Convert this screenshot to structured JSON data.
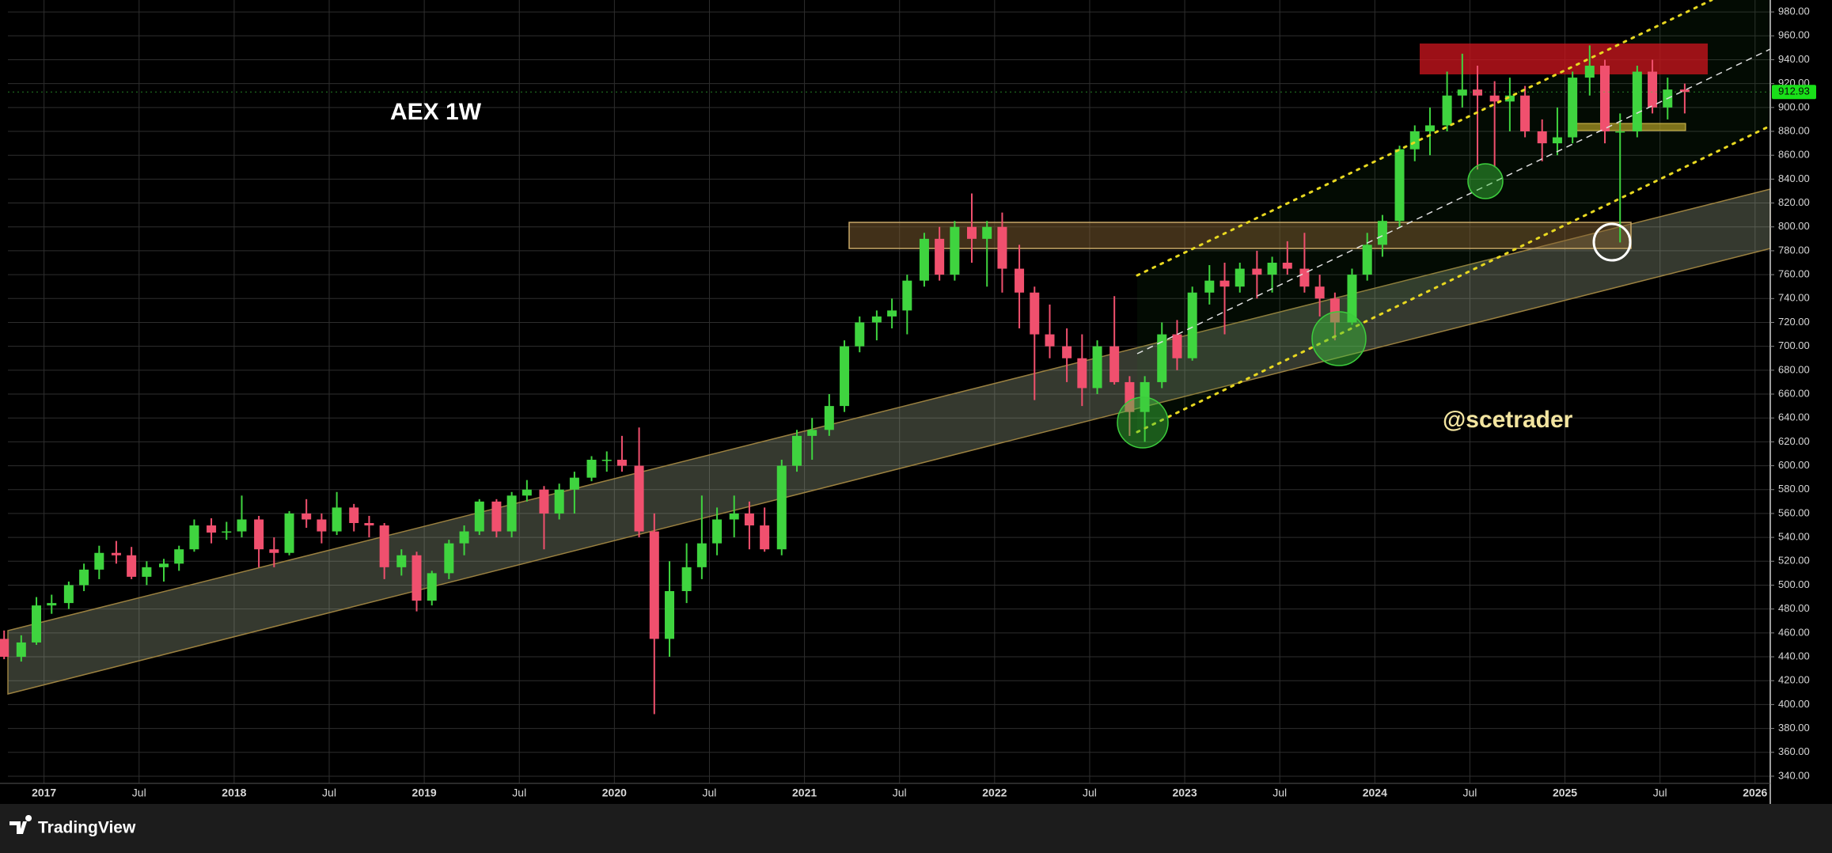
{
  "chart_data": {
    "type": "candlestick",
    "title": "AEX 1W",
    "watermark": "@scetrader",
    "brand": "TradingView",
    "up_color": "#3fd43f",
    "down_color": "#f0506e",
    "grid": true,
    "last_price_label": "912.93",
    "xlim": [
      2016.81,
      2026.08
    ],
    "xticks": [
      2017,
      {
        "value": 2017.5,
        "label": "Jul"
      },
      2018,
      {
        "value": 2018.5,
        "label": "Jul"
      },
      2019,
      {
        "value": 2019.5,
        "label": "Jul"
      },
      2020,
      {
        "value": 2020.5,
        "label": "Jul"
      },
      2021,
      {
        "value": 2021.5,
        "label": "Jul"
      },
      2022,
      {
        "value": 2022.5,
        "label": "Jul"
      },
      2023,
      {
        "value": 2023.5,
        "label": "Jul"
      },
      2024,
      {
        "value": 2024.5,
        "label": "Jul"
      },
      2025,
      {
        "value": 2025.5,
        "label": "Jul"
      },
      2026
    ],
    "ylim": [
      334,
      990
    ],
    "yticks": [
      {
        "value": 340,
        "label": "340.00"
      },
      {
        "value": 360,
        "label": "360.00"
      },
      {
        "value": 380,
        "label": "380.00"
      },
      {
        "value": 400,
        "label": "400.00"
      },
      {
        "value": 420,
        "label": "420.00"
      },
      {
        "value": 440,
        "label": "440.00"
      },
      {
        "value": 460,
        "label": "460.00"
      },
      {
        "value": 480,
        "label": "480.00"
      },
      {
        "value": 500,
        "label": "500.00"
      },
      {
        "value": 520,
        "label": "520.00"
      },
      {
        "value": 540,
        "label": "540.00"
      },
      {
        "value": 560,
        "label": "560.00"
      },
      {
        "value": 580,
        "label": "580.00"
      },
      {
        "value": 600,
        "label": "600.00"
      },
      {
        "value": 620,
        "label": "620.00"
      },
      {
        "value": 640,
        "label": "640.00"
      },
      {
        "value": 660,
        "label": "660.00"
      },
      {
        "value": 680,
        "label": "680.00"
      },
      {
        "value": 700,
        "label": "700.00"
      },
      {
        "value": 720,
        "label": "720.00"
      },
      {
        "value": 740,
        "label": "740.00"
      },
      {
        "value": 760,
        "label": "760.00"
      },
      {
        "value": 780,
        "label": "780.00"
      },
      {
        "value": 800,
        "label": "800.00"
      },
      {
        "value": 820,
        "label": "820.00"
      },
      {
        "value": 840,
        "label": "840.00"
      },
      {
        "value": 860,
        "label": "860.00"
      },
      {
        "value": 880,
        "label": "880.00"
      },
      {
        "value": 900,
        "label": "900.00"
      },
      {
        "value": 920,
        "label": "920.00"
      },
      {
        "value": 940,
        "label": "940.00"
      },
      {
        "value": 960,
        "label": "960.00"
      },
      {
        "value": 980,
        "label": "980.00"
      }
    ],
    "x": [
      2016.79,
      2016.88,
      2016.96,
      2017.04,
      2017.13,
      2017.21,
      2017.29,
      2017.38,
      2017.46,
      2017.54,
      2017.63,
      2017.71,
      2017.79,
      2017.88,
      2017.96,
      2018.04,
      2018.13,
      2018.21,
      2018.29,
      2018.38,
      2018.46,
      2018.54,
      2018.63,
      2018.71,
      2018.79,
      2018.88,
      2018.96,
      2019.04,
      2019.13,
      2019.21,
      2019.29,
      2019.38,
      2019.46,
      2019.54,
      2019.63,
      2019.71,
      2019.79,
      2019.88,
      2019.96,
      2020.04,
      2020.13,
      2020.21,
      2020.29,
      2020.38,
      2020.46,
      2020.54,
      2020.63,
      2020.71,
      2020.79,
      2020.88,
      2020.96,
      2021.04,
      2021.13,
      2021.21,
      2021.29,
      2021.38,
      2021.46,
      2021.54,
      2021.63,
      2021.71,
      2021.79,
      2021.88,
      2021.96,
      2022.04,
      2022.13,
      2022.21,
      2022.29,
      2022.38,
      2022.46,
      2022.54,
      2022.63,
      2022.71,
      2022.79,
      2022.88,
      2022.96,
      2023.04,
      2023.13,
      2023.21,
      2023.29,
      2023.38,
      2023.46,
      2023.54,
      2023.63,
      2023.71,
      2023.79,
      2023.88,
      2023.96,
      2024.04,
      2024.13,
      2024.21,
      2024.29,
      2024.38,
      2024.46,
      2024.54,
      2024.63,
      2024.71,
      2024.79,
      2024.88,
      2024.96,
      2025.04,
      2025.13,
      2025.21,
      2025.29,
      2025.38,
      2025.46,
      2025.54,
      2025.63
    ],
    "open": [
      455,
      440,
      452,
      483,
      485,
      500,
      513,
      527,
      525,
      507,
      515,
      518,
      530,
      550,
      544,
      545,
      555,
      530,
      527,
      560,
      555,
      545,
      565,
      552,
      550,
      515,
      525,
      487,
      510,
      535,
      545,
      570,
      545,
      575,
      580,
      560,
      580,
      590,
      605,
      605,
      600,
      545,
      455,
      495,
      515,
      535,
      555,
      560,
      550,
      530,
      600,
      625,
      630,
      650,
      700,
      720,
      725,
      730,
      755,
      790,
      760,
      800,
      790,
      800,
      765,
      745,
      710,
      700,
      690,
      665,
      700,
      670,
      645,
      670,
      710,
      690,
      745,
      755,
      750,
      765,
      760,
      770,
      765,
      750,
      740,
      720,
      760,
      785,
      805,
      865,
      880,
      885,
      910,
      915,
      910,
      905,
      910,
      880,
      870,
      875,
      925,
      935,
      880,
      880,
      930,
      900,
      915
    ],
    "high": [
      462,
      458,
      490,
      492,
      503,
      518,
      533,
      537,
      532,
      520,
      522,
      533,
      555,
      556,
      553,
      575,
      558,
      540,
      562,
      572,
      560,
      578,
      568,
      558,
      552,
      530,
      528,
      512,
      538,
      550,
      572,
      572,
      578,
      588,
      583,
      585,
      595,
      608,
      612,
      625,
      632,
      560,
      520,
      535,
      575,
      565,
      575,
      570,
      565,
      605,
      630,
      640,
      660,
      705,
      725,
      730,
      740,
      760,
      795,
      800,
      805,
      828,
      805,
      812,
      785,
      750,
      735,
      715,
      710,
      705,
      742,
      675,
      675,
      720,
      722,
      750,
      768,
      770,
      770,
      780,
      775,
      788,
      795,
      760,
      745,
      765,
      795,
      810,
      868,
      885,
      900,
      930,
      945,
      935,
      922,
      925,
      918,
      890,
      900,
      930,
      952,
      940,
      895,
      935,
      940,
      925,
      920
    ],
    "low": [
      438,
      436,
      450,
      476,
      480,
      495,
      505,
      518,
      505,
      500,
      503,
      512,
      528,
      535,
      538,
      540,
      515,
      515,
      525,
      548,
      535,
      542,
      545,
      540,
      505,
      508,
      478,
      483,
      505,
      525,
      542,
      540,
      540,
      570,
      530,
      555,
      560,
      587,
      595,
      595,
      540,
      392,
      440,
      485,
      505,
      525,
      540,
      530,
      528,
      525,
      595,
      605,
      625,
      645,
      695,
      705,
      715,
      710,
      750,
      755,
      755,
      770,
      750,
      745,
      715,
      655,
      690,
      670,
      650,
      660,
      668,
      625,
      620,
      665,
      680,
      688,
      735,
      710,
      745,
      740,
      745,
      760,
      745,
      725,
      705,
      718,
      755,
      775,
      800,
      855,
      860,
      880,
      900,
      848,
      850,
      880,
      875,
      855,
      860,
      870,
      910,
      870,
      787,
      875,
      895,
      890,
      895
    ],
    "close": [
      440,
      452,
      483,
      485,
      500,
      513,
      527,
      525,
      507,
      515,
      518,
      530,
      550,
      544,
      545,
      555,
      530,
      527,
      560,
      555,
      545,
      565,
      552,
      550,
      515,
      525,
      487,
      510,
      535,
      545,
      570,
      545,
      575,
      580,
      560,
      580,
      590,
      605,
      605,
      600,
      545,
      455,
      495,
      515,
      535,
      555,
      560,
      550,
      530,
      600,
      625,
      630,
      650,
      700,
      720,
      725,
      730,
      755,
      790,
      760,
      800,
      790,
      800,
      765,
      745,
      710,
      700,
      690,
      665,
      700,
      670,
      645,
      670,
      710,
      690,
      745,
      755,
      750,
      765,
      760,
      770,
      765,
      750,
      740,
      720,
      760,
      785,
      805,
      865,
      880,
      885,
      910,
      915,
      910,
      905,
      910,
      880,
      870,
      875,
      925,
      935,
      880,
      880,
      930,
      900,
      915,
      912.93
    ]
  }
}
